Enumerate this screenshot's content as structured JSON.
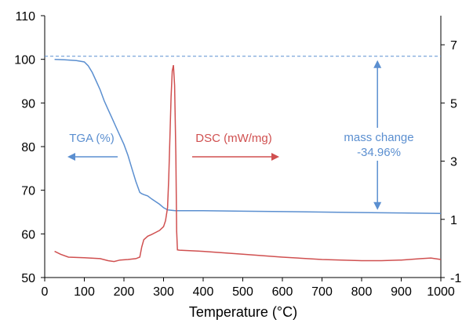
{
  "chart_data": {
    "type": "line",
    "xlabel": "Temperature (°C)",
    "xlim": [
      0,
      1000
    ],
    "x_ticks": [
      "0",
      "100",
      "200",
      "300",
      "400",
      "500",
      "600",
      "700",
      "800",
      "900",
      "1000"
    ],
    "ylim_left": [
      50,
      110
    ],
    "y_left_ticks": [
      "50",
      "60",
      "70",
      "80",
      "90",
      "100",
      "110"
    ],
    "ylim_right": [
      -1,
      8
    ],
    "y_right_ticks": [
      "-1",
      "1",
      "3",
      "5",
      "7"
    ],
    "grid": false,
    "series": [
      {
        "name": "TGA (%)",
        "axis": "left",
        "color": "#5b8fd0",
        "points": [
          [
            25,
            100.0
          ],
          [
            50,
            99.9
          ],
          [
            80,
            99.7
          ],
          [
            100,
            99.4
          ],
          [
            110,
            98.5
          ],
          [
            120,
            97.0
          ],
          [
            130,
            95.0
          ],
          [
            140,
            93.0
          ],
          [
            150,
            90.5
          ],
          [
            160,
            88.5
          ],
          [
            170,
            86.5
          ],
          [
            180,
            84.5
          ],
          [
            190,
            82.5
          ],
          [
            200,
            80.5
          ],
          [
            210,
            78.0
          ],
          [
            220,
            75.0
          ],
          [
            230,
            72.0
          ],
          [
            240,
            69.5
          ],
          [
            245,
            69.2
          ],
          [
            250,
            69.0
          ],
          [
            260,
            68.7
          ],
          [
            270,
            68.0
          ],
          [
            280,
            67.4
          ],
          [
            290,
            66.8
          ],
          [
            300,
            66.0
          ],
          [
            310,
            65.5
          ],
          [
            320,
            65.4
          ],
          [
            330,
            65.3
          ],
          [
            400,
            65.3
          ],
          [
            500,
            65.2
          ],
          [
            600,
            65.1
          ],
          [
            700,
            65.0
          ],
          [
            800,
            64.9
          ],
          [
            900,
            64.8
          ],
          [
            1000,
            64.7
          ]
        ]
      },
      {
        "name": "DSC (mW/mg)",
        "axis": "right",
        "color": "#d05050",
        "points": [
          [
            25,
            -0.1
          ],
          [
            40,
            -0.2
          ],
          [
            60,
            -0.3
          ],
          [
            100,
            -0.32
          ],
          [
            140,
            -0.35
          ],
          [
            160,
            -0.42
          ],
          [
            175,
            -0.45
          ],
          [
            190,
            -0.4
          ],
          [
            210,
            -0.38
          ],
          [
            230,
            -0.35
          ],
          [
            240,
            -0.3
          ],
          [
            245,
            0.05
          ],
          [
            250,
            0.3
          ],
          [
            260,
            0.42
          ],
          [
            270,
            0.48
          ],
          [
            280,
            0.55
          ],
          [
            290,
            0.62
          ],
          [
            300,
            0.75
          ],
          [
            305,
            0.95
          ],
          [
            310,
            1.4
          ],
          [
            313,
            2.4
          ],
          [
            316,
            3.8
          ],
          [
            319,
            5.2
          ],
          [
            322,
            6.1
          ],
          [
            325,
            6.3
          ],
          [
            328,
            5.6
          ],
          [
            331,
            3.2
          ],
          [
            333,
            0.6
          ],
          [
            335,
            -0.05
          ],
          [
            340,
            -0.06
          ],
          [
            400,
            -0.1
          ],
          [
            500,
            -0.2
          ],
          [
            600,
            -0.3
          ],
          [
            700,
            -0.38
          ],
          [
            800,
            -0.42
          ],
          [
            850,
            -0.42
          ],
          [
            900,
            -0.4
          ],
          [
            950,
            -0.35
          ],
          [
            975,
            -0.33
          ],
          [
            1000,
            -0.38
          ]
        ]
      }
    ],
    "reference_line": {
      "axis": "left",
      "y": 100.7,
      "style": "dashed",
      "color": "#5b8fd0"
    },
    "mass_change_arrow": {
      "x": 840,
      "y_top": 99.8,
      "y_bottom": 65.5
    },
    "annotations": {
      "tga_label": "TGA (%)",
      "dsc_label": "DSC (mW/mg)",
      "mass_change_line1": "mass change",
      "mass_change_line2": "-34.96%"
    }
  },
  "colors": {
    "tga": "#5b8fd0",
    "dsc": "#d05050",
    "axis": "#000000"
  }
}
